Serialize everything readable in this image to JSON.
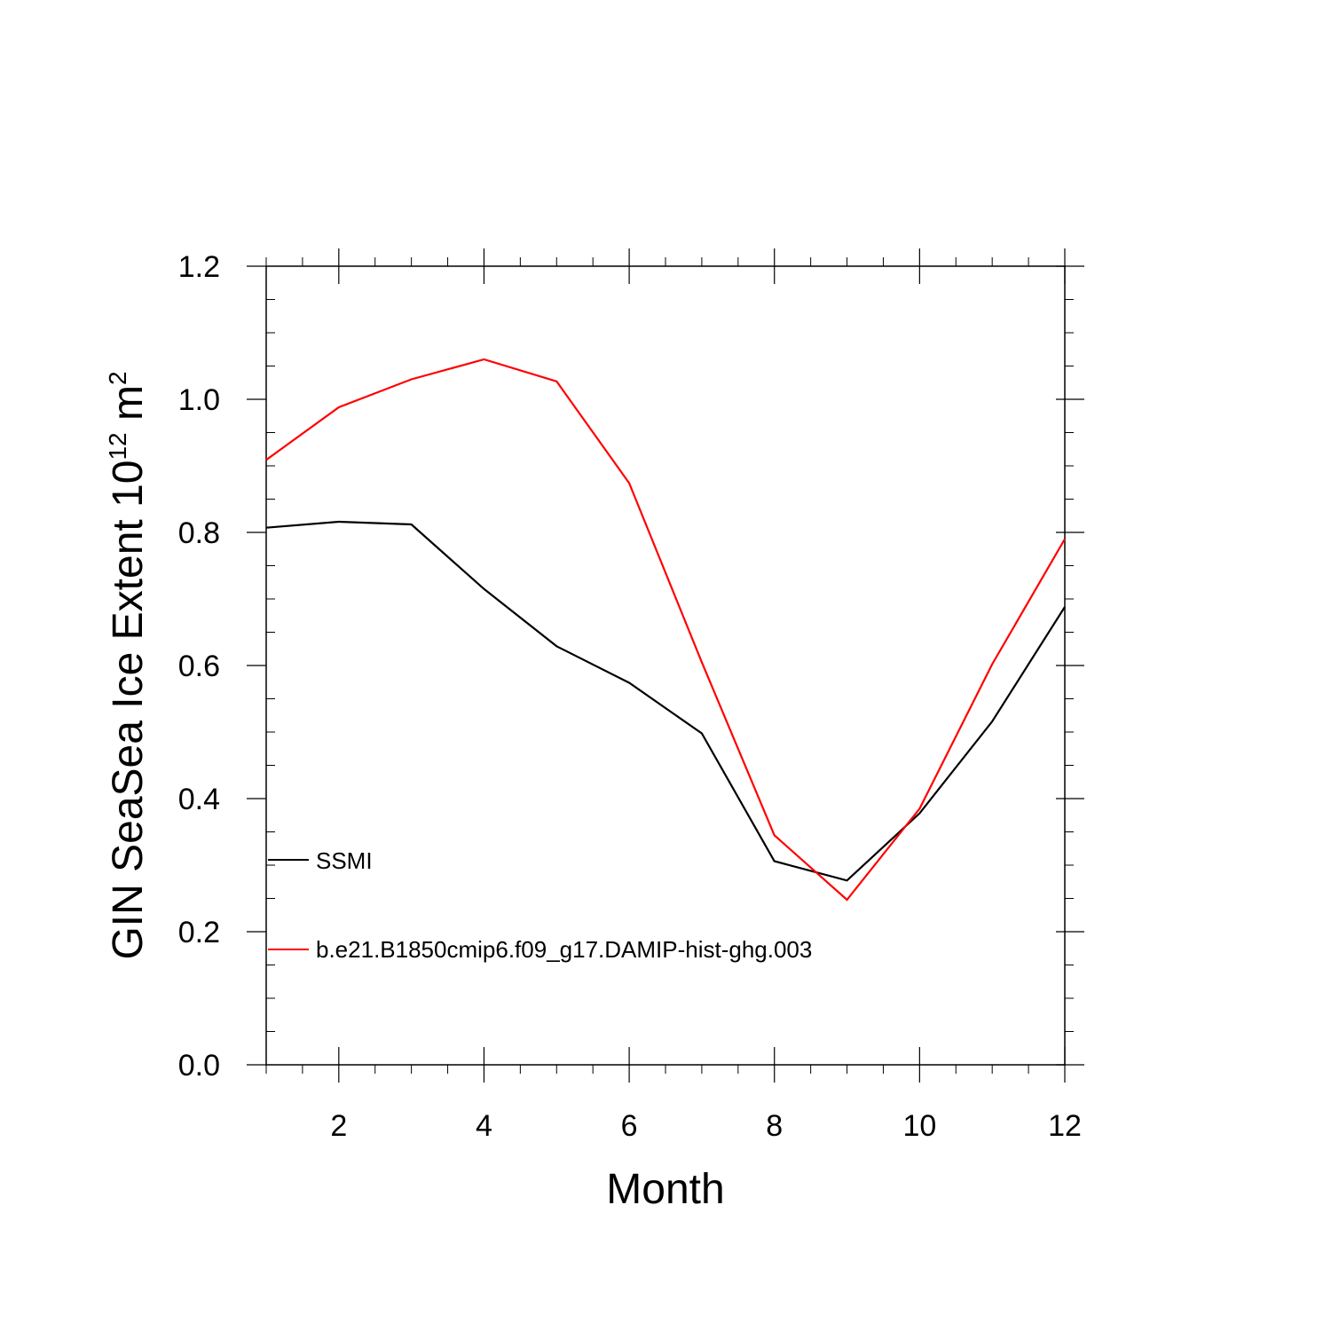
{
  "chart_data": {
    "type": "line",
    "x": [
      1,
      2,
      3,
      4,
      5,
      6,
      7,
      8,
      9,
      10,
      11,
      12
    ],
    "series": [
      {
        "name": "SSMI",
        "color": "#000000",
        "values": [
          0.807,
          0.816,
          0.812,
          0.715,
          0.629,
          0.574,
          0.498,
          0.306,
          0.277,
          0.378,
          0.516,
          0.688
        ]
      },
      {
        "name": "b.e21.B1850cmip6.f09_g17.DAMIP-hist-ghg.003",
        "color": "#ff0000",
        "values": [
          0.909,
          0.988,
          1.03,
          1.06,
          1.027,
          0.874,
          0.605,
          0.345,
          0.248,
          0.385,
          0.602,
          0.79
        ]
      }
    ],
    "xlabel": "Month",
    "ylabel_main": "GIN SeaSea Ice Extent 10",
    "ylabel_exp": "12",
    "ylabel_unit": " m",
    "ylabel_unit_exp": "2",
    "xlim": [
      1,
      12
    ],
    "ylim": [
      0,
      1.2
    ],
    "x_ticks": [
      2,
      4,
      6,
      8,
      10,
      12
    ],
    "x_tick_labels": [
      "2",
      "4",
      "6",
      "8",
      "10",
      "12"
    ],
    "y_ticks": [
      0,
      0.2,
      0.4,
      0.6,
      0.8,
      1.0,
      1.2
    ],
    "y_tick_labels": [
      "0.0",
      "0.2",
      "0.4",
      "0.6",
      "0.8",
      "1.0",
      "1.2"
    ],
    "grid": false,
    "legend_position": "inside-left"
  }
}
